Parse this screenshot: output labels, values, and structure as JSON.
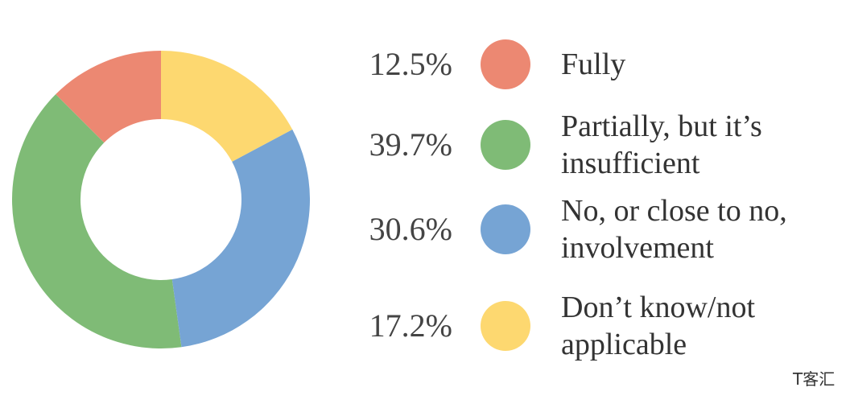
{
  "chart_data": {
    "type": "pie",
    "donut": true,
    "categories": [
      "Fully",
      "Partially, but it’s insufficient",
      "No, or close to no, involvement",
      "Don’t know/not applicable"
    ],
    "values": [
      12.5,
      39.7,
      30.6,
      17.2
    ],
    "value_labels": [
      "12.5%",
      "39.7%",
      "30.6%",
      "17.2%"
    ],
    "colors": [
      "#ec8872",
      "#7fbb76",
      "#76a4d4",
      "#fdd870"
    ],
    "watermark": "T客汇"
  }
}
